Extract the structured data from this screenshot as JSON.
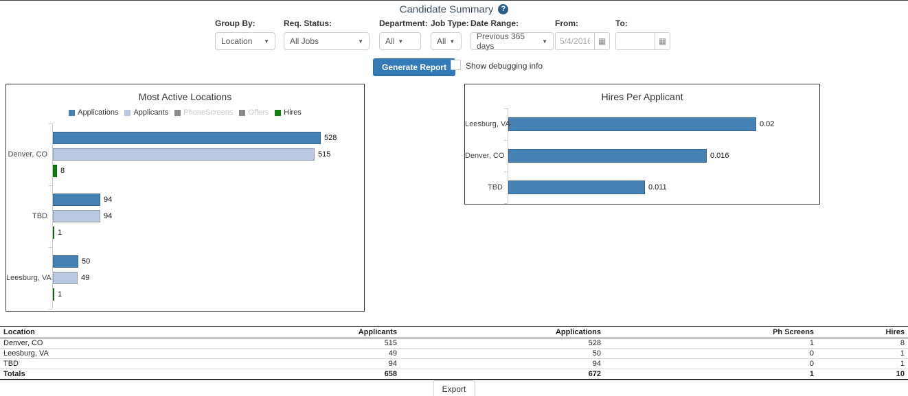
{
  "header": {
    "title": "Candidate Summary",
    "help_icon": "?"
  },
  "filters": {
    "group_by": {
      "label": "Group By:",
      "value": "Location"
    },
    "req_status": {
      "label": "Req. Status:",
      "value": "All Jobs"
    },
    "department": {
      "label": "Department:",
      "value": "All"
    },
    "job_type": {
      "label": "Job Type:",
      "value": "All"
    },
    "date_range": {
      "label": "Date Range:",
      "value": "Previous 365 days"
    },
    "from": {
      "label": "From:",
      "value": "5/4/2016"
    },
    "to": {
      "label": "To:",
      "value": ""
    }
  },
  "toolbar": {
    "generate_label": "Generate Report",
    "debug_label": "Show debugging info",
    "debug_checked": false,
    "export_label": "Export"
  },
  "colors": {
    "primary_button": "#337ab7",
    "bar_blue": "#4581B5",
    "bar_light_blue": "#B8C9E1",
    "bar_green": "#118011",
    "disabled_swatch": "#8a8a8a"
  },
  "chart_data": [
    {
      "type": "bar",
      "orientation": "horizontal",
      "title": "Most Active Locations",
      "categories": [
        "Denver, CO",
        "TBD",
        "Leesburg, VA"
      ],
      "series": [
        {
          "name": "Applications",
          "color": "#4581B5",
          "visible": true,
          "values": [
            528,
            94,
            50
          ]
        },
        {
          "name": "Applicants",
          "color": "#B8C9E1",
          "visible": true,
          "values": [
            515,
            94,
            49
          ]
        },
        {
          "name": "PhoneScreens",
          "color": "#8a8a8a",
          "visible": false,
          "values": []
        },
        {
          "name": "Offers",
          "color": "#8a8a8a",
          "visible": false,
          "values": []
        },
        {
          "name": "Hires",
          "color": "#118011",
          "visible": true,
          "values": [
            8,
            1,
            1
          ]
        }
      ],
      "xlim": [
        0,
        540
      ],
      "legend_position": "top",
      "grid": false
    },
    {
      "type": "bar",
      "orientation": "horizontal",
      "title": "Hires Per Applicant",
      "categories": [
        "Leesburg, VA",
        "Denver, CO",
        "TBD"
      ],
      "series": [
        {
          "name": "Hires Per Applicant",
          "color": "#4581B5",
          "visible": true,
          "values": [
            0.02,
            0.016,
            0.011
          ]
        }
      ],
      "xlim": [
        0,
        0.0216
      ],
      "legend_position": "none",
      "grid": false
    }
  ],
  "table": {
    "columns": [
      "Location",
      "Applicants",
      "Applications",
      "Ph Screens",
      "Hires"
    ],
    "rows": [
      [
        "Denver, CO",
        "515",
        "528",
        "1",
        "8"
      ],
      [
        "Leesburg, VA",
        "49",
        "50",
        "0",
        "1"
      ],
      [
        "TBD",
        "94",
        "94",
        "0",
        "1"
      ]
    ],
    "totals": [
      "Totals",
      "658",
      "672",
      "1",
      "10"
    ]
  }
}
